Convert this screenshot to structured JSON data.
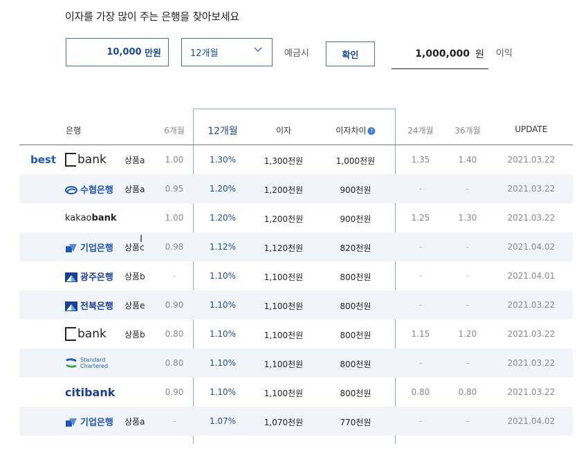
{
  "header": {
    "title": "이자를 가장 많이 주는 은행을 찾아보세요"
  },
  "form": {
    "amount_value": "10,000",
    "amount_unit": "만원",
    "period_selected": "12개월",
    "deposit_label": "예금시",
    "confirm_label": "확인",
    "profit_value": "1,000,000",
    "profit_unit": "원",
    "profit_label": "이익"
  },
  "table": {
    "headers": {
      "bank": "은행",
      "m6": "6개월",
      "m12": "12개월",
      "interest": "이자",
      "diff": "이자차이",
      "m24": "24개월",
      "m36": "36개월",
      "update": "UPDATE"
    },
    "best_label": "best",
    "rows": [
      {
        "bank": "K bank",
        "product": "상품a",
        "m6": "1.00",
        "m12": "1.30%",
        "interest": "1,300천원",
        "diff": "1,000천원",
        "m24": "1.35",
        "m36": "1.40",
        "update": "2021.03.22"
      },
      {
        "bank": "수협은행",
        "product": "상품a",
        "m6": "0.95",
        "m12": "1.20%",
        "interest": "1,200천원",
        "diff": "900천원",
        "m24": "-",
        "m36": "-",
        "update": "2021.03.22"
      },
      {
        "bank": "kakaobank",
        "product": "",
        "m6": "1.00",
        "m12": "1.20%",
        "interest": "1,200천원",
        "diff": "900천원",
        "m24": "1.25",
        "m36": "1.30",
        "update": "2021.03.22"
      },
      {
        "bank": "기업은행",
        "product": "상품c",
        "m6": "0.98",
        "m12": "1.12%",
        "interest": "1,120천원",
        "diff": "820천원",
        "m24": "-",
        "m36": "-",
        "update": "2021.04.02"
      },
      {
        "bank": "광주은행",
        "product": "상품b",
        "m6": "-",
        "m12": "1.10%",
        "interest": "1,100천원",
        "diff": "800천원",
        "m24": "-",
        "m36": "-",
        "update": "2021.04.01"
      },
      {
        "bank": "전북은행",
        "product": "상품e",
        "m6": "0.90",
        "m12": "1.10%",
        "interest": "1,100천원",
        "diff": "800천원",
        "m24": "-",
        "m36": "-",
        "update": "2021.03.22"
      },
      {
        "bank": "K bank",
        "product": "상품b",
        "m6": "0.80",
        "m12": "1.10%",
        "interest": "1,100천원",
        "diff": "800천원",
        "m24": "1.15",
        "m36": "1.20",
        "update": "2021.03.22"
      },
      {
        "bank": "Standard Chartered",
        "product": "",
        "m6": "0.80",
        "m12": "1.10%",
        "interest": "1,100천원",
        "diff": "800천원",
        "m24": "-",
        "m36": "-",
        "update": "2021.03.22"
      },
      {
        "bank": "citibank",
        "product": "",
        "m6": "0.90",
        "m12": "1.10%",
        "interest": "1,100천원",
        "diff": "800천원",
        "m24": "0.80",
        "m36": "0.80",
        "update": "2021.03.22"
      },
      {
        "bank": "기업은행",
        "product": "상품a",
        "m6": "-",
        "m12": "1.07%",
        "interest": "1,070천원",
        "diff": "770천원",
        "m24": "-",
        "m36": "-",
        "update": "2021.04.02"
      }
    ]
  },
  "logos": {
    "kbank_text": "bank",
    "kbank_k": "K",
    "kakao_a": "kakao",
    "kakao_b": "bank",
    "citi": "citibank",
    "sc_line1": "Standard",
    "sc_line2": "Chartered"
  },
  "colors": {
    "accent": "#1b4d92",
    "best": "#1f57b8",
    "row_alt": "#f1f4f8"
  }
}
